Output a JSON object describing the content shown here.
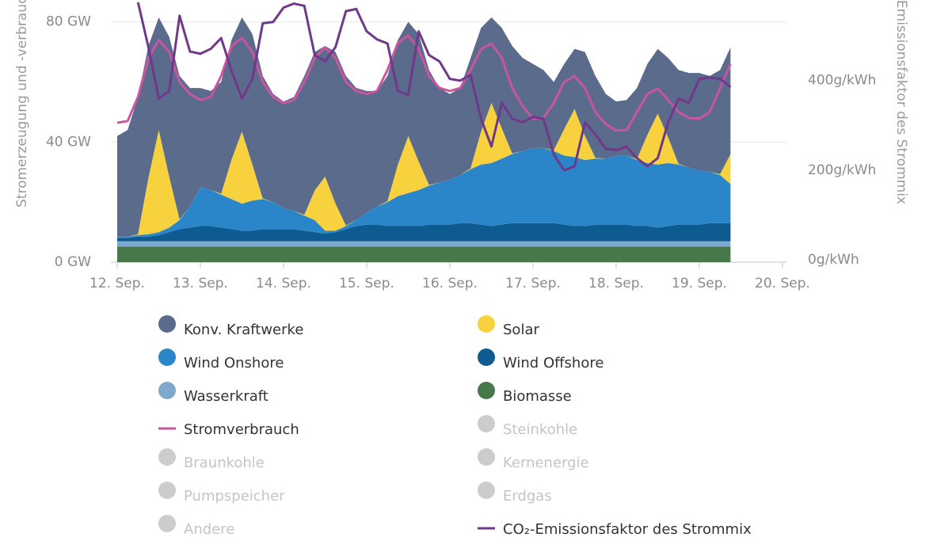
{
  "chart_data": {
    "type": "stacked-area",
    "y_label": "Stromerzeugung und -verbrauch",
    "y2_label": "CO₂-Emissionsfaktor des Strommix",
    "xlim": [
      12,
      20
    ],
    "xticks": [
      {
        "value": 12,
        "label": "12. Sep."
      },
      {
        "value": 13,
        "label": "13. Sep."
      },
      {
        "value": 14,
        "label": "14. Sep."
      },
      {
        "value": 15,
        "label": "15. Sep."
      },
      {
        "value": 16,
        "label": "16. Sep."
      },
      {
        "value": 17,
        "label": "17. Sep."
      },
      {
        "value": 18,
        "label": "18. Sep."
      },
      {
        "value": 19,
        "label": "19. Sep."
      },
      {
        "value": 20,
        "label": "20. Sep."
      }
    ],
    "ylim": [
      0,
      87.3
    ],
    "yticks": [
      {
        "value": 0,
        "label": "0 GW"
      },
      {
        "value": 40,
        "label": "40 GW"
      },
      {
        "value": 80,
        "label": "80 GW"
      }
    ],
    "y2lim": [
      0,
      585
    ],
    "y2ticks": [
      {
        "value": 0,
        "label": "0g/kWh"
      },
      {
        "value": 200,
        "label": "200g/kWh"
      },
      {
        "value": 400,
        "label": "400g/kWh"
      }
    ],
    "grid": true,
    "x": [
      12,
      12.125,
      12.25,
      12.375,
      12.5,
      12.625,
      12.75,
      12.875,
      13,
      13.125,
      13.25,
      13.375,
      13.5,
      13.625,
      13.75,
      13.875,
      14,
      14.125,
      14.25,
      14.375,
      14.5,
      14.625,
      14.75,
      14.875,
      15,
      15.125,
      15.25,
      15.375,
      15.5,
      15.625,
      15.75,
      15.875,
      16,
      16.125,
      16.25,
      16.375,
      16.5,
      16.625,
      16.75,
      16.875,
      17,
      17.125,
      17.25,
      17.375,
      17.5,
      17.625,
      17.75,
      17.875,
      18,
      18.125,
      18.25,
      18.375,
      18.5,
      18.625,
      18.75,
      18.875,
      19,
      19.125,
      19.25,
      19.375
    ],
    "series": [
      {
        "name": "Konv. Kraftwerke",
        "color": "#5b6b8c",
        "kind": "area",
        "values": [
          33.5,
          35.5,
          45.7,
          44,
          37.5,
          46.5,
          47.8,
          39.5,
          33,
          33,
          37.2,
          39.8,
          38,
          43.5,
          40.8,
          36,
          35.5,
          38,
          46.2,
          46.1,
          43.5,
          50.5,
          49.8,
          44,
          40.5,
          38.5,
          41.7,
          41.5,
          38,
          42.5,
          38.3,
          31.5,
          28.5,
          29,
          36.7,
          34.5,
          28.5,
          33.5,
          35.8,
          31,
          28,
          26,
          22.7,
          21.7,
          20,
          28,
          27.3,
          21.5,
          18,
          18.5,
          23.7,
          23.6,
          21.5,
          26.5,
          31.3,
          31.5,
          32.5,
          32,
          34.7,
          35.5
        ]
      },
      {
        "name": "Solar",
        "color": "#f7d23e",
        "kind": "area",
        "values": [
          0,
          0,
          0.3,
          18.7,
          34,
          17,
          0.2,
          0,
          0,
          0,
          0.3,
          13.2,
          24,
          12,
          0.2,
          0,
          0,
          0,
          0.3,
          9.9,
          18,
          9,
          0.2,
          0,
          0,
          0,
          0.3,
          10.5,
          19,
          9.5,
          0.2,
          0,
          0,
          0,
          0.3,
          11,
          20,
          10,
          0.2,
          0,
          0,
          0,
          0.3,
          8.8,
          16,
          8,
          0.2,
          0,
          0,
          0,
          0.3,
          9.4,
          17,
          8.5,
          0.2,
          0,
          0,
          0,
          0.3,
          10
        ]
      },
      {
        "name": "Wind Onshore",
        "color": "#2a86c8",
        "kind": "area",
        "values": [
          0.5,
          0.5,
          0.5,
          0.8,
          1,
          1.5,
          3,
          7,
          13,
          12,
          11,
          10,
          9,
          10,
          10,
          9,
          7,
          6,
          5,
          4,
          1,
          0.5,
          1,
          2,
          4,
          6,
          8,
          10,
          11,
          12,
          13,
          14,
          15,
          16,
          18,
          20,
          21,
          22,
          23,
          24,
          25,
          25,
          24,
          23,
          23,
          22,
          22,
          22,
          23,
          23,
          22,
          21,
          21,
          21,
          20,
          19,
          18,
          17,
          16,
          13
        ]
      },
      {
        "name": "Wind Offshore",
        "color": "#0d5b91",
        "kind": "area",
        "values": [
          1,
          1,
          1.5,
          1.5,
          2,
          3,
          4,
          4.5,
          5,
          5,
          4.5,
          4,
          3.5,
          3.5,
          4,
          4,
          4,
          4,
          3.5,
          3,
          2.5,
          3,
          4,
          5,
          5.5,
          5.5,
          5,
          5,
          5,
          5,
          5.5,
          5.5,
          5.5,
          6,
          6,
          5.5,
          5,
          5.5,
          6,
          6,
          6,
          6,
          6,
          5.5,
          5,
          5,
          5.5,
          5.5,
          5.5,
          5.5,
          5,
          5,
          4.5,
          5,
          5.5,
          5.5,
          5.5,
          6,
          6,
          6
        ]
      },
      {
        "name": "Wasserkraft",
        "color": "#7fa9cc",
        "kind": "area",
        "values": [
          1.8,
          1.8,
          1.8,
          1.8,
          1.8,
          1.8,
          1.8,
          1.8,
          1.8,
          1.8,
          1.8,
          1.8,
          1.8,
          1.8,
          1.8,
          1.8,
          1.8,
          1.8,
          1.8,
          1.8,
          1.8,
          1.8,
          1.8,
          1.8,
          1.8,
          1.8,
          1.8,
          1.8,
          1.8,
          1.8,
          1.8,
          1.8,
          1.8,
          1.8,
          1.8,
          1.8,
          1.8,
          1.8,
          1.8,
          1.8,
          1.8,
          1.8,
          1.8,
          1.8,
          1.8,
          1.8,
          1.8,
          1.8,
          1.8,
          1.8,
          1.8,
          1.8,
          1.8,
          1.8,
          1.8,
          1.8,
          1.8,
          1.8,
          1.8,
          1.8
        ]
      },
      {
        "name": "Biomasse",
        "color": "#46784a",
        "kind": "area",
        "values": [
          5.2,
          5.2,
          5.2,
          5.2,
          5.2,
          5.2,
          5.2,
          5.2,
          5.2,
          5.2,
          5.2,
          5.2,
          5.2,
          5.2,
          5.2,
          5.2,
          5.2,
          5.2,
          5.2,
          5.2,
          5.2,
          5.2,
          5.2,
          5.2,
          5.2,
          5.2,
          5.2,
          5.2,
          5.2,
          5.2,
          5.2,
          5.2,
          5.2,
          5.2,
          5.2,
          5.2,
          5.2,
          5.2,
          5.2,
          5.2,
          5.2,
          5.2,
          5.2,
          5.2,
          5.2,
          5.2,
          5.2,
          5.2,
          5.2,
          5.2,
          5.2,
          5.2,
          5.2,
          5.2,
          5.2,
          5.2,
          5.2,
          5.2,
          5.2,
          5.2
        ]
      },
      {
        "name": "Stromverbrauch",
        "color": "#c855a0",
        "kind": "line",
        "values": [
          46.4,
          47,
          55,
          68,
          74,
          70,
          60,
          56,
          54,
          55,
          62,
          72,
          74.7,
          70,
          60,
          55,
          53,
          54,
          60,
          68,
          71.5,
          68,
          60,
          57,
          56,
          57,
          64,
          73,
          75.5,
          71,
          62,
          58,
          57,
          58,
          64,
          71,
          72.8,
          68,
          58,
          52,
          47.8,
          48,
          53,
          60,
          62,
          58,
          50,
          46,
          43.8,
          44,
          50,
          56,
          57.8,
          54,
          50,
          48,
          47.8,
          50,
          58,
          66
        ]
      },
      {
        "name": "Steinkohle",
        "color": "#cccccc",
        "visible": false
      },
      {
        "name": "Braunkohle",
        "color": "#cccccc",
        "visible": false
      },
      {
        "name": "Kernenergie",
        "color": "#cccccc",
        "visible": false
      },
      {
        "name": "Pumpspeicher",
        "color": "#cccccc",
        "visible": false
      },
      {
        "name": "Erdgas",
        "color": "#cccccc",
        "visible": false
      },
      {
        "name": "Andere",
        "color": "#cccccc",
        "visible": false
      },
      {
        "name": "CO₂-Emissionsfaktor des Strommix",
        "color": "#70388a",
        "kind": "line",
        "axis": "y2",
        "values": [
          null,
          null,
          580,
          480,
          365,
          382,
          550,
          470,
          465,
          476,
          500,
          427,
          365,
          409,
          533,
          536,
          568,
          577,
          572,
          462,
          448,
          480,
          560,
          565,
          515,
          497,
          488,
          382,
          373,
          515,
          462,
          448,
          409,
          405,
          418,
          320,
          258,
          356,
          320,
          312,
          324,
          320,
          240,
          205,
          214,
          312,
          285,
          253,
          250,
          258,
          232,
          214,
          232,
          312,
          365,
          356,
          409,
          412,
          409,
          391
        ]
      }
    ]
  }
}
